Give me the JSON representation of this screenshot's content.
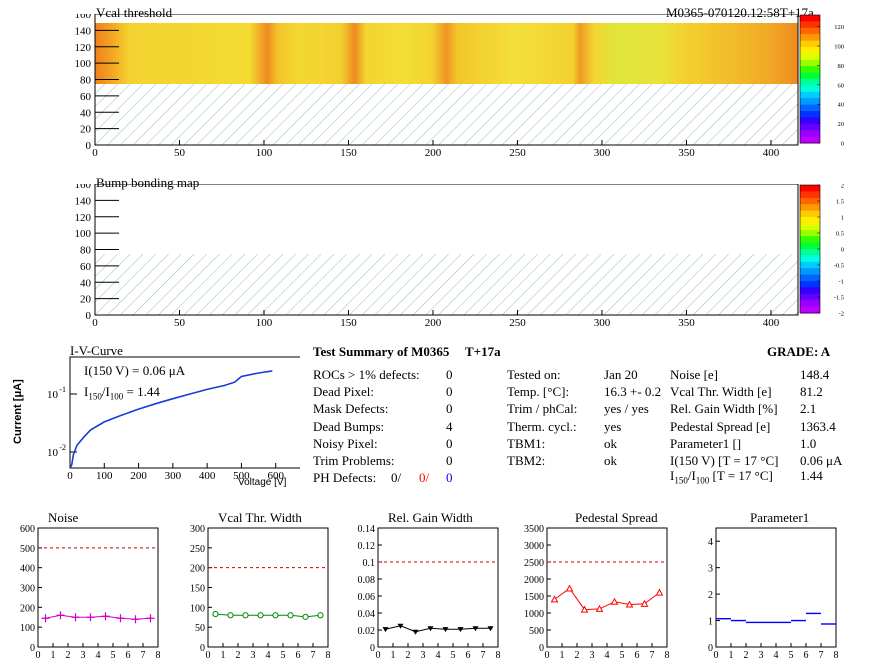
{
  "maps": {
    "vcal": {
      "title": "Vcal threshold",
      "module_label": "M0365-070120.12:58T+17a",
      "x_ticks": [
        "0",
        "50",
        "100",
        "150",
        "200",
        "250",
        "300",
        "350",
        "400"
      ],
      "y_ticks": [
        "0",
        "20",
        "40",
        "60",
        "80",
        "100",
        "120",
        "140",
        "160"
      ],
      "palette_ticks": [
        "0",
        "20",
        "40",
        "60",
        "80",
        "100",
        "120"
      ]
    },
    "bump": {
      "title": "Bump bonding map",
      "x_ticks": [
        "0",
        "50",
        "100",
        "150",
        "200",
        "250",
        "300",
        "350",
        "400"
      ],
      "y_ticks": [
        "0",
        "20",
        "40",
        "60",
        "80",
        "100",
        "120",
        "140",
        "160"
      ],
      "palette_ticks": [
        "-2",
        "-1.5",
        "-1",
        "-0.5",
        "0",
        "0.5",
        "1",
        "1.5",
        "2"
      ]
    }
  },
  "iv": {
    "title": "I-V-Curve",
    "ylabel": "Current [μA]",
    "xlabel": "Voltage [V]",
    "annotation1": "I(150 V) = 0.06 μA",
    "annotation2_pre": "I",
    "annotation2_sub1": "150",
    "annotation2_mid": "/I",
    "annotation2_sub2": "100",
    "annotation2_post": " =  1.44",
    "x_ticks": [
      "0",
      "100",
      "200",
      "300",
      "400",
      "500",
      "600"
    ],
    "y_ticks": [
      "10",
      "10"
    ],
    "y_tick_exps": [
      "-2",
      "-1"
    ]
  },
  "summary": {
    "title": "Test Summary of M0365",
    "tag": "T+17a",
    "grade": "GRADE:  A",
    "left_rows": [
      {
        "label": "ROCs > 1% defects:",
        "value": "0"
      },
      {
        "label": "Dead Pixel:",
        "value": "0"
      },
      {
        "label": "Mask Defects:",
        "value": "0"
      },
      {
        "label": "Dead Bumps:",
        "value": "4"
      },
      {
        "label": "Noisy Pixel:",
        "value": "0"
      },
      {
        "label": "Trim Problems:",
        "value": "0"
      }
    ],
    "ph_defects": {
      "label": "PH Defects:",
      "v1": "0/",
      "v2": "0/",
      "v3": "0"
    },
    "mid_rows": [
      {
        "label": "Tested on:",
        "value": "Jan 20"
      },
      {
        "label": "Temp. [°C]:",
        "value": "16.3 +- 0.2"
      },
      {
        "label": "Trim / phCal:",
        "value": "yes / yes"
      },
      {
        "label": "Therm. cycl.:",
        "value": "yes"
      },
      {
        "label": "TBM1:",
        "value": "ok"
      },
      {
        "label": "TBM2:",
        "value": "ok"
      }
    ],
    "right_rows": [
      {
        "label": "Noise [e]",
        "value": "148.4"
      },
      {
        "label": "Vcal Thr. Width [e]",
        "value": "81.2"
      },
      {
        "label": "Rel. Gain Width [%]",
        "value": "2.1"
      },
      {
        "label": "Pedestal Spread [e]",
        "value": "1363.4"
      },
      {
        "label": "Parameter1 []",
        "value": "1.0"
      },
      {
        "label": "I(150 V) [T = 17 °C]",
        "value": "0.06 μA"
      }
    ],
    "ratio_row": {
      "pre": "I",
      "sub1": "150",
      "mid": "/I",
      "sub2": "100",
      "post": "  [T = 17 °C]",
      "value": "1.44"
    },
    "colors": {
      "red": "#ff0000",
      "blue": "#0000ff"
    }
  },
  "chart_data": [
    {
      "type": "line",
      "title": "Noise",
      "x": [
        0.5,
        1.5,
        2.5,
        3.5,
        4.5,
        5.5,
        6.5,
        7.5
      ],
      "values": [
        145,
        160,
        150,
        150,
        155,
        145,
        140,
        145
      ],
      "ylim": [
        0,
        600
      ],
      "xlim": [
        0,
        8
      ],
      "threshold": 500,
      "y_ticks": [
        "0",
        "100",
        "200",
        "300",
        "400",
        "500",
        "600"
      ],
      "x_ticks": [
        "0",
        "1",
        "2",
        "3",
        "4",
        "5",
        "6",
        "7",
        "8"
      ],
      "color": "#cc00cc",
      "marker": "plus"
    },
    {
      "type": "line",
      "title": "Vcal Thr. Width",
      "x": [
        0.5,
        1.5,
        2.5,
        3.5,
        4.5,
        5.5,
        6.5,
        7.5
      ],
      "values": [
        83,
        80,
        80,
        80,
        80,
        80,
        76,
        80
      ],
      "ylim": [
        0,
        300
      ],
      "xlim": [
        0,
        8
      ],
      "threshold": 200,
      "y_ticks": [
        "0",
        "50",
        "100",
        "150",
        "200",
        "250",
        "300"
      ],
      "x_ticks": [
        "0",
        "1",
        "2",
        "3",
        "4",
        "5",
        "6",
        "7",
        "8"
      ],
      "color": "#008800",
      "marker": "circle"
    },
    {
      "type": "line",
      "title": "Rel. Gain Width",
      "x": [
        0.5,
        1.5,
        2.5,
        3.5,
        4.5,
        5.5,
        6.5,
        7.5
      ],
      "values": [
        0.021,
        0.025,
        0.018,
        0.022,
        0.021,
        0.021,
        0.022,
        0.022
      ],
      "ylim": [
        0,
        0.14
      ],
      "xlim": [
        0,
        8
      ],
      "threshold": 0.1,
      "y_ticks": [
        "0",
        "0.02",
        "0.04",
        "0.06",
        "0.08",
        "0.1",
        "0.12",
        "0.14"
      ],
      "x_ticks": [
        "0",
        "1",
        "2",
        "3",
        "4",
        "5",
        "6",
        "7",
        "8"
      ],
      "color": "#000000",
      "marker": "triangle-down"
    },
    {
      "type": "line",
      "title": "Pedestal Spread",
      "x": [
        0.5,
        1.5,
        2.5,
        3.5,
        4.5,
        5.5,
        6.5,
        7.5
      ],
      "values": [
        1400,
        1720,
        1100,
        1120,
        1330,
        1250,
        1270,
        1600
      ],
      "ylim": [
        0,
        3500
      ],
      "xlim": [
        0,
        8
      ],
      "threshold": 2500,
      "y_ticks": [
        "0",
        "500",
        "1000",
        "1500",
        "2000",
        "2500",
        "3000",
        "3500"
      ],
      "x_ticks": [
        "0",
        "1",
        "2",
        "3",
        "4",
        "5",
        "6",
        "7",
        "8"
      ],
      "color": "#ff0000",
      "marker": "triangle-up"
    },
    {
      "type": "scatter",
      "title": "Parameter1",
      "x": [
        0.5,
        1.5,
        2.5,
        3.5,
        4.5,
        5.5,
        6.5,
        7.5
      ],
      "values": [
        1.07,
        1.0,
        0.93,
        0.93,
        0.93,
        1.0,
        1.27,
        0.87
      ],
      "ylim": [
        0,
        4.5
      ],
      "xlim": [
        0,
        8
      ],
      "y_ticks": [
        "0",
        "1",
        "2",
        "3",
        "4"
      ],
      "x_ticks": [
        "0",
        "1",
        "2",
        "3",
        "4",
        "5",
        "6",
        "7",
        "8"
      ],
      "color": "#0000ff",
      "marker": "hbar"
    }
  ]
}
